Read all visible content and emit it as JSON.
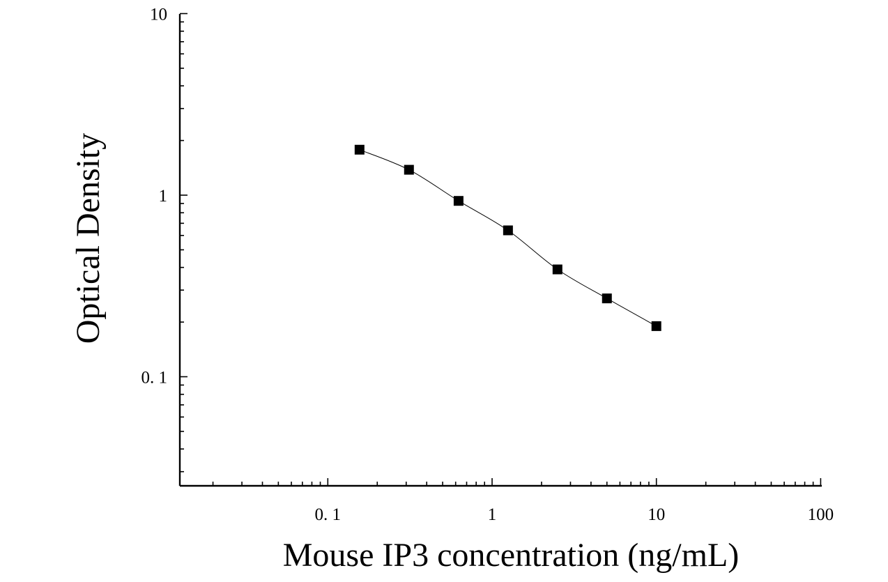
{
  "chart_data": {
    "type": "scatter",
    "title": "",
    "xlabel": "Mouse IP3 concentration (ng/mL)",
    "ylabel": "Optical Density",
    "x_scale": "log",
    "y_scale": "log",
    "xlim": [
      0.0125,
      100
    ],
    "ylim": [
      0.025,
      10
    ],
    "x_ticks": [
      0.1,
      1,
      10,
      100
    ],
    "x_tick_labels": [
      "0. 1",
      "1",
      "10",
      "100"
    ],
    "y_ticks": [
      0.1,
      1,
      10
    ],
    "y_tick_labels": [
      "0. 1",
      "1",
      "10"
    ],
    "grid": false,
    "series": [
      {
        "marker": "square",
        "color": "#000000",
        "x": [
          0.156,
          0.312,
          0.625,
          1.25,
          2.5,
          5,
          10
        ],
        "y": [
          1.78,
          1.38,
          0.93,
          0.64,
          0.39,
          0.27,
          0.19
        ],
        "fit": "4PL curve"
      }
    ]
  }
}
